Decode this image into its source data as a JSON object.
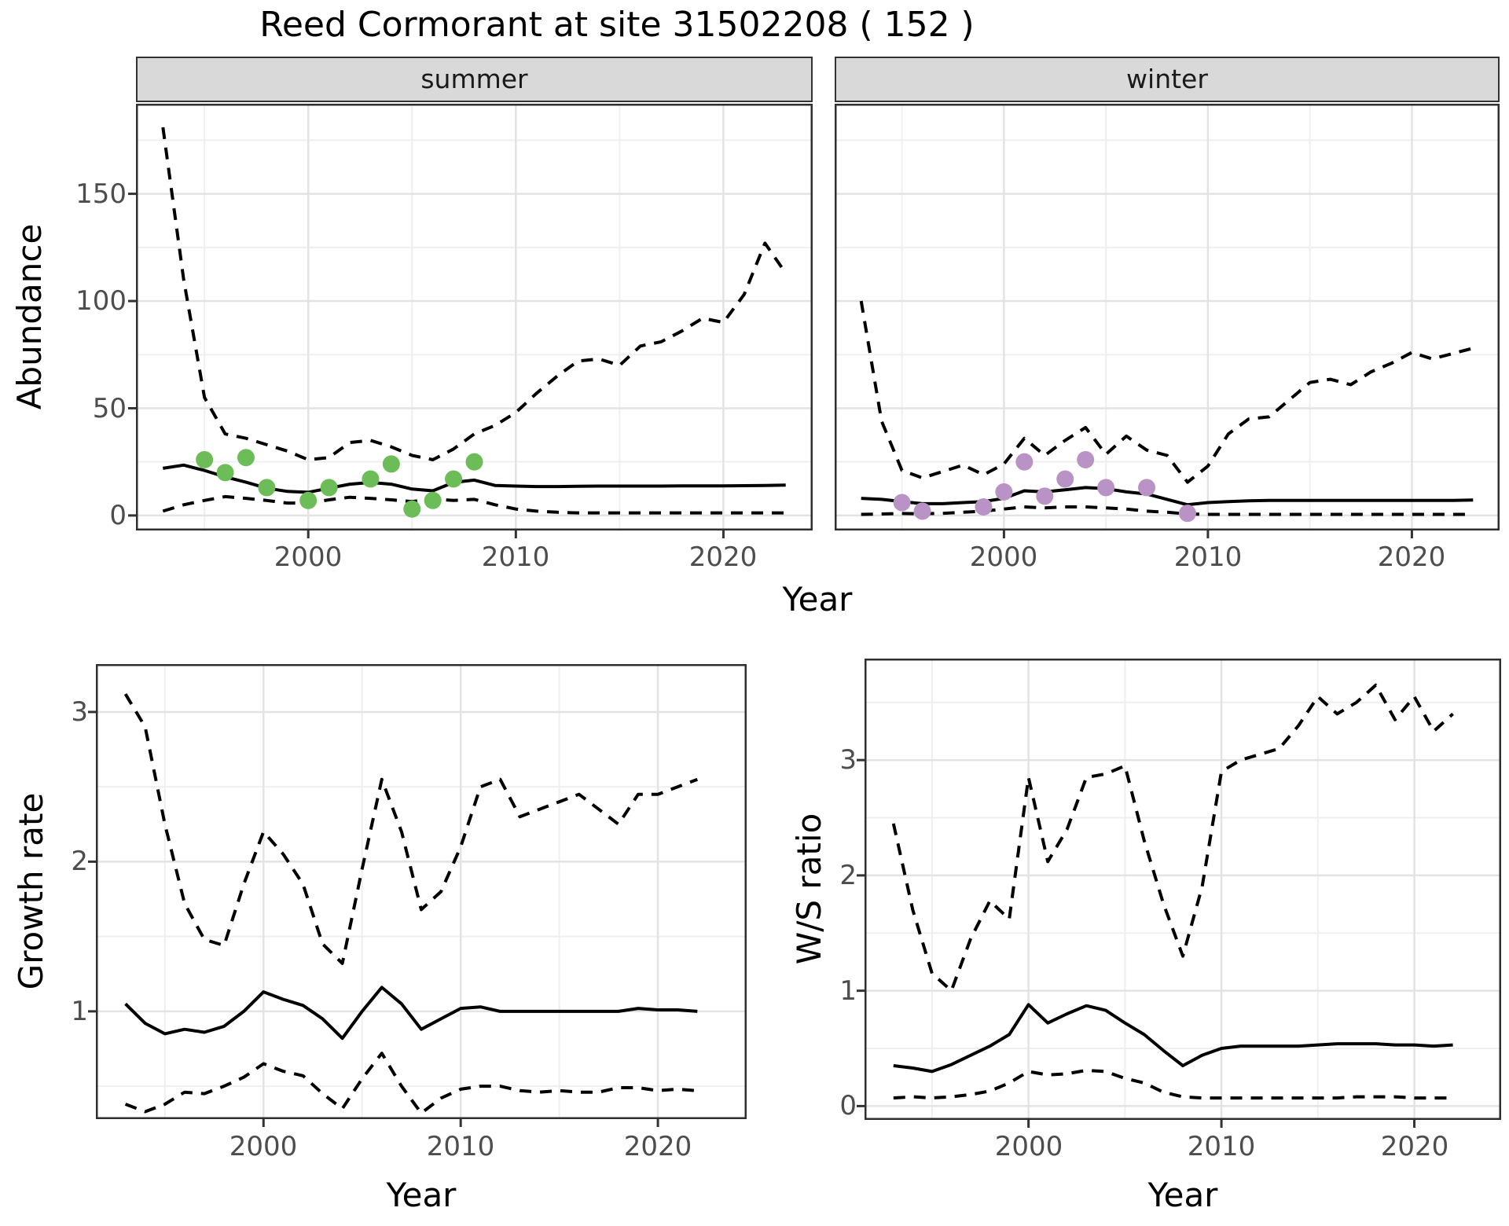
{
  "title": "Reed Cormorant at site 31502208 ( 152 )",
  "colors": {
    "summer_point": "#6cbd57",
    "winter_point": "#b993c6",
    "line": "#000000",
    "grid_major": "#e3e3e3",
    "grid_minor": "#efefef",
    "panel_border": "#2f2f2f",
    "tick_mark": "#333333",
    "strip_bg": "#d9d9d9",
    "axis_text": "#4d4d4d"
  },
  "chart_data": [
    {
      "id": "abundance-summer",
      "type": "line",
      "facet_label": "summer",
      "xlabel": "Year",
      "ylabel": "Abundance",
      "xlim": [
        1991.7,
        2024.3
      ],
      "ylim": [
        -7,
        192
      ],
      "xticks": [
        2000,
        2010,
        2020
      ],
      "xticks_minor": [
        1995,
        2005,
        2015
      ],
      "yticks": [
        0,
        50,
        100,
        150
      ],
      "yticks_minor": [
        25,
        75,
        125,
        175
      ],
      "x": [
        1993,
        1994,
        1995,
        1996,
        1997,
        1998,
        1999,
        2000,
        2001,
        2002,
        2003,
        2004,
        2005,
        2006,
        2007,
        2008,
        2009,
        2010,
        2011,
        2012,
        2013,
        2014,
        2015,
        2016,
        2017,
        2018,
        2019,
        2020,
        2021,
        2022,
        2023
      ],
      "series": [
        {
          "name": "median",
          "style": "solid",
          "values": [
            22,
            23.5,
            21,
            18,
            15.5,
            12.7,
            11.2,
            10.8,
            12.7,
            14.6,
            15.4,
            14.6,
            12.3,
            11.5,
            15.4,
            16.5,
            14,
            13.7,
            13.5,
            13.5,
            13.6,
            13.7,
            13.7,
            13.7,
            13.7,
            13.8,
            13.8,
            13.8,
            13.9,
            14,
            14.2
          ]
        },
        {
          "name": "upper_ci",
          "style": "dashed",
          "values": [
            181,
            110,
            55,
            38,
            36,
            33,
            30,
            26,
            27,
            34,
            35,
            32,
            28,
            26,
            31,
            38,
            42,
            48,
            57,
            65,
            72,
            73,
            70,
            79,
            81,
            86,
            92,
            90,
            103,
            127,
            113
          ]
        },
        {
          "name": "lower_ci",
          "style": "dashed",
          "values": [
            2,
            5,
            7,
            8.8,
            8,
            7,
            5.8,
            5.8,
            7.3,
            8.5,
            8,
            7.3,
            6.5,
            7.7,
            7,
            7.5,
            5,
            3,
            2,
            1.5,
            1.2,
            1.2,
            1.2,
            1.2,
            1.2,
            1.2,
            1.2,
            1.2,
            1.2,
            1.2,
            1.2
          ]
        }
      ],
      "points": {
        "name": "observed-counts",
        "color": "#6cbd57",
        "x": [
          1995,
          1996,
          1997,
          1998,
          2000,
          2001,
          2003,
          2004,
          2005,
          2006,
          2007,
          2008
        ],
        "y": [
          26,
          20,
          27,
          13,
          7,
          13,
          17,
          24,
          3,
          7,
          17,
          25
        ]
      }
    },
    {
      "id": "abundance-winter",
      "type": "line",
      "facet_label": "winter",
      "xlabel": "Year",
      "ylabel": "Abundance",
      "xlim": [
        1991.7,
        2024.3
      ],
      "ylim": [
        -7,
        192
      ],
      "xticks": [
        2000,
        2010,
        2020
      ],
      "xticks_minor": [
        1995,
        2005,
        2015
      ],
      "yticks": [
        0,
        50,
        100,
        150
      ],
      "yticks_minor": [
        25,
        75,
        125,
        175
      ],
      "x": [
        1993,
        1994,
        1995,
        1996,
        1997,
        1998,
        1999,
        2000,
        2001,
        2002,
        2003,
        2004,
        2005,
        2006,
        2007,
        2008,
        2009,
        2010,
        2011,
        2012,
        2013,
        2014,
        2015,
        2016,
        2017,
        2018,
        2019,
        2020,
        2021,
        2022,
        2023
      ],
      "series": [
        {
          "name": "median",
          "style": "solid",
          "values": [
            8,
            7.5,
            6.5,
            5.5,
            5.5,
            6,
            6.5,
            8,
            11.5,
            11,
            12,
            13,
            12.5,
            11,
            10,
            7.5,
            5,
            6,
            6.5,
            6.8,
            7,
            7,
            7,
            7,
            7,
            7,
            7,
            7,
            7,
            7,
            7.2
          ]
        },
        {
          "name": "upper_ci",
          "style": "dashed",
          "values": [
            100,
            44,
            21,
            17.5,
            20.5,
            23.5,
            19,
            24,
            36,
            28,
            35,
            41,
            28.5,
            37,
            30.5,
            28,
            15.5,
            23,
            38,
            45,
            46,
            54,
            62,
            63.5,
            61,
            67,
            71,
            76,
            73,
            75.5,
            78
          ]
        },
        {
          "name": "lower_ci",
          "style": "dashed",
          "values": [
            0.5,
            0.7,
            0.9,
            0.8,
            1,
            1.5,
            2,
            3,
            4,
            3.5,
            4,
            4,
            3.5,
            3,
            2,
            1.5,
            0.7,
            0.5,
            0.5,
            0.5,
            0.5,
            0.5,
            0.5,
            0.5,
            0.5,
            0.5,
            0.5,
            0.5,
            0.5,
            0.5,
            0.5
          ]
        }
      ],
      "points": {
        "name": "observed-counts",
        "color": "#b993c6",
        "x": [
          1995,
          1996,
          1999,
          2000,
          2001,
          2002,
          2003,
          2004,
          2005,
          2007,
          2009
        ],
        "y": [
          6,
          2,
          4,
          11,
          25,
          9,
          17,
          26,
          13,
          13,
          1
        ]
      }
    },
    {
      "id": "growth-rate",
      "type": "line",
      "facet_label": null,
      "xlabel": "Year",
      "ylabel": "Growth rate",
      "xlim": [
        1991.5,
        2024.5
      ],
      "ylim": [
        0.28,
        3.32
      ],
      "xticks": [
        2000,
        2010,
        2020
      ],
      "xticks_minor": [
        1995,
        2005,
        2015
      ],
      "yticks": [
        1,
        2,
        3
      ],
      "yticks_minor": [
        0.5,
        1.5,
        2.5
      ],
      "x": [
        1993,
        1994,
        1995,
        1996,
        1997,
        1998,
        1999,
        2000,
        2001,
        2002,
        2003,
        2004,
        2005,
        2006,
        2007,
        2008,
        2009,
        2010,
        2011,
        2012,
        2013,
        2014,
        2015,
        2016,
        2017,
        2018,
        2019,
        2020,
        2021,
        2022
      ],
      "series": [
        {
          "name": "median",
          "style": "solid",
          "values": [
            1.05,
            0.92,
            0.85,
            0.88,
            0.86,
            0.9,
            1.0,
            1.13,
            1.08,
            1.04,
            0.95,
            0.82,
            1.0,
            1.16,
            1.05,
            0.88,
            0.95,
            1.02,
            1.03,
            1.0,
            1.0,
            1.0,
            1.0,
            1.0,
            1.0,
            1.0,
            1.02,
            1.01,
            1.01,
            1.0
          ]
        },
        {
          "name": "upper_ci",
          "style": "dashed",
          "values": [
            3.12,
            2.9,
            2.25,
            1.72,
            1.48,
            1.44,
            1.85,
            2.2,
            2.05,
            1.85,
            1.45,
            1.32,
            1.95,
            2.55,
            2.2,
            1.68,
            1.8,
            2.1,
            2.5,
            2.55,
            2.3,
            2.35,
            2.4,
            2.45,
            2.35,
            2.25,
            2.45,
            2.45,
            2.5,
            2.55
          ]
        },
        {
          "name": "lower_ci",
          "style": "dashed",
          "values": [
            0.38,
            0.33,
            0.38,
            0.46,
            0.45,
            0.5,
            0.56,
            0.65,
            0.6,
            0.57,
            0.45,
            0.35,
            0.55,
            0.72,
            0.5,
            0.32,
            0.42,
            0.48,
            0.5,
            0.5,
            0.47,
            0.46,
            0.47,
            0.46,
            0.46,
            0.49,
            0.49,
            0.47,
            0.48,
            0.47
          ]
        }
      ],
      "points": null
    },
    {
      "id": "ws-ratio",
      "type": "line",
      "facet_label": null,
      "xlabel": "Year",
      "ylabel": "W/S ratio",
      "xlim": [
        1991.5,
        2024.5
      ],
      "ylim": [
        -0.12,
        3.88
      ],
      "xticks": [
        2000,
        2010,
        2020
      ],
      "xticks_minor": [
        1995,
        2005,
        2015
      ],
      "yticks": [
        0,
        1,
        2,
        3
      ],
      "yticks_minor": [
        0.5,
        1.5,
        2.5,
        3.5
      ],
      "x": [
        1993,
        1994,
        1995,
        1996,
        1997,
        1998,
        1999,
        2000,
        2001,
        2002,
        2003,
        2004,
        2005,
        2006,
        2007,
        2008,
        2009,
        2010,
        2011,
        2012,
        2013,
        2014,
        2015,
        2016,
        2017,
        2018,
        2019,
        2020,
        2021,
        2022
      ],
      "series": [
        {
          "name": "median",
          "style": "solid",
          "values": [
            0.35,
            0.33,
            0.3,
            0.36,
            0.44,
            0.52,
            0.62,
            0.88,
            0.72,
            0.8,
            0.87,
            0.83,
            0.72,
            0.62,
            0.48,
            0.35,
            0.44,
            0.5,
            0.52,
            0.52,
            0.52,
            0.52,
            0.53,
            0.54,
            0.54,
            0.54,
            0.53,
            0.53,
            0.52,
            0.53
          ]
        },
        {
          "name": "upper_ci",
          "style": "dashed",
          "values": [
            2.45,
            1.7,
            1.15,
            1.0,
            1.45,
            1.78,
            1.62,
            2.85,
            2.12,
            2.4,
            2.85,
            2.88,
            2.95,
            2.3,
            1.75,
            1.3,
            1.9,
            2.9,
            3.0,
            3.05,
            3.1,
            3.3,
            3.55,
            3.4,
            3.5,
            3.65,
            3.35,
            3.55,
            3.25,
            3.4
          ]
        },
        {
          "name": "lower_ci",
          "style": "dashed",
          "values": [
            0.07,
            0.08,
            0.07,
            0.08,
            0.1,
            0.13,
            0.2,
            0.3,
            0.27,
            0.28,
            0.31,
            0.3,
            0.24,
            0.2,
            0.12,
            0.08,
            0.07,
            0.07,
            0.07,
            0.07,
            0.07,
            0.07,
            0.07,
            0.07,
            0.08,
            0.08,
            0.08,
            0.07,
            0.07,
            0.07
          ]
        }
      ],
      "points": null
    }
  ]
}
